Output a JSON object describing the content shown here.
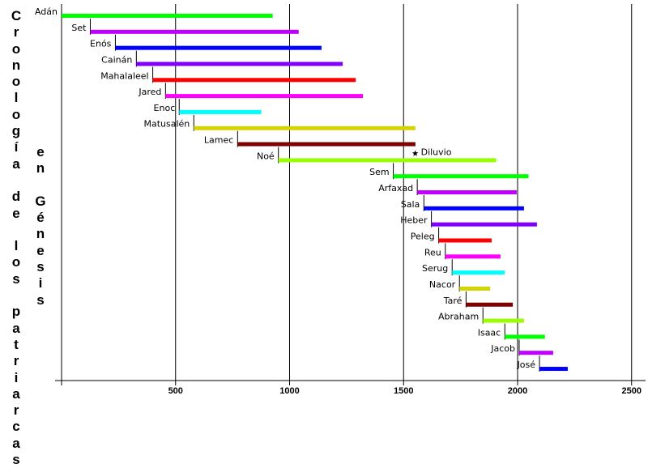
{
  "chart_data": {
    "type": "bar",
    "subtype": "timeline-gantt",
    "title": "Cronología de los patriarcas",
    "subtitle": "en Génesis",
    "xlim": [
      0,
      2550
    ],
    "xticks": [
      500,
      1000,
      1500,
      2000,
      2500
    ],
    "grid": "vertical",
    "annotations": [
      {
        "label": "Diluvio",
        "x": 1551,
        "marker": "star",
        "after_row": "Lamec"
      }
    ],
    "series": [
      {
        "name": "Adán",
        "start": 0,
        "end": 926,
        "color": "#00ff00"
      },
      {
        "name": "Set",
        "start": 126,
        "end": 1040,
        "color": "#bf00ff"
      },
      {
        "name": "Enós",
        "start": 236,
        "end": 1140,
        "color": "#0000ff"
      },
      {
        "name": "Cainán",
        "start": 328,
        "end": 1233,
        "color": "#8000ff"
      },
      {
        "name": "Mahalaleel",
        "start": 400,
        "end": 1290,
        "color": "#ff0000"
      },
      {
        "name": "Jared",
        "start": 456,
        "end": 1322,
        "color": "#ff00ff"
      },
      {
        "name": "Enoc",
        "start": 516,
        "end": 876,
        "color": "#00ffff"
      },
      {
        "name": "Matusalén",
        "start": 580,
        "end": 1552,
        "color": "#d4d400"
      },
      {
        "name": "Lamec",
        "start": 772,
        "end": 1552,
        "color": "#800000"
      },
      {
        "name": "Noé",
        "start": 951,
        "end": 1906,
        "color": "#99ff00"
      },
      {
        "name": "Sem",
        "start": 1455,
        "end": 2048,
        "color": "#00ff00"
      },
      {
        "name": "Arfaxad",
        "start": 1560,
        "end": 1996,
        "color": "#bf00ff"
      },
      {
        "name": "Sala",
        "start": 1589,
        "end": 2028,
        "color": "#0000ff"
      },
      {
        "name": "Heber",
        "start": 1622,
        "end": 2085,
        "color": "#8000ff"
      },
      {
        "name": "Peleg",
        "start": 1654,
        "end": 1886,
        "color": "#ff0000"
      },
      {
        "name": "Reu",
        "start": 1683,
        "end": 1925,
        "color": "#ff00ff"
      },
      {
        "name": "Serug",
        "start": 1713,
        "end": 1943,
        "color": "#00ffff"
      },
      {
        "name": "Nacor",
        "start": 1745,
        "end": 1880,
        "color": "#d4d400"
      },
      {
        "name": "Taré",
        "start": 1774,
        "end": 1979,
        "color": "#800000"
      },
      {
        "name": "Abraham",
        "start": 1848,
        "end": 2028,
        "color": "#99ff00"
      },
      {
        "name": "Isaac",
        "start": 1944,
        "end": 2120,
        "color": "#00ff00"
      },
      {
        "name": "Jacob",
        "start": 2007,
        "end": 2156,
        "color": "#bf00ff"
      },
      {
        "name": "José",
        "start": 2096,
        "end": 2220,
        "color": "#0000ff"
      }
    ]
  }
}
